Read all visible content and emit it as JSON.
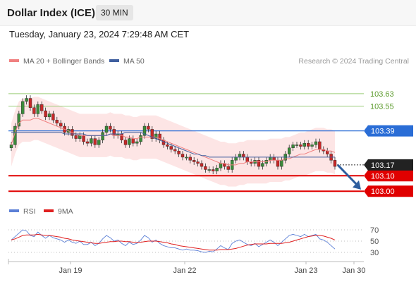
{
  "header": {
    "title": "Dollar Index (ICE)",
    "interval": "30 MIN",
    "datetime": "Tuesday, January 23, 2024 7:29:48 AM CET"
  },
  "legend": {
    "ma20": "MA 20 + Bollinger Bands",
    "ma50": "MA 50",
    "credit": "Research © 2024 Trading Central",
    "rsi": "RSI",
    "rsi_ma": "9MA"
  },
  "colors": {
    "up": "#3a8a3a",
    "down": "#c62828",
    "ma20": "#f08080",
    "ma50": "#3f5f9f",
    "band": "#fcdede",
    "resistance": "#9acd78",
    "pivot": "#2a6dd6",
    "support": "#e00000",
    "arrow": "#2e5e9e",
    "rsi_line": "#5b7fd6",
    "rsi_ma": "#e02020"
  },
  "chart_data": {
    "type": "candlestick",
    "symbol": "Dollar Index (ICE)",
    "timeframe": "30 MIN",
    "x_labels": [
      "Jan 19",
      "Jan 22",
      "Jan 23",
      "Jan 30"
    ],
    "ylim": [
      102.96,
      103.78
    ],
    "levels": [
      {
        "id": "r2",
        "value": 103.63,
        "label": "103.63",
        "kind": "resistance"
      },
      {
        "id": "r1",
        "value": 103.55,
        "label": "103.55",
        "kind": "resistance"
      },
      {
        "id": "pivot",
        "value": 103.39,
        "label": "103.39",
        "kind": "pivot"
      },
      {
        "id": "s1",
        "value": 103.1,
        "label": "103.10",
        "kind": "support"
      },
      {
        "id": "s2",
        "value": 103.0,
        "label": "103.00",
        "kind": "support"
      }
    ],
    "last_price": {
      "value": 103.17,
      "label": "103.17"
    },
    "closes": [
      103.3,
      103.42,
      103.5,
      103.58,
      103.6,
      103.54,
      103.5,
      103.56,
      103.52,
      103.48,
      103.5,
      103.46,
      103.44,
      103.42,
      103.38,
      103.4,
      103.36,
      103.34,
      103.36,
      103.32,
      103.31,
      103.34,
      103.3,
      103.33,
      103.38,
      103.42,
      103.4,
      103.36,
      103.37,
      103.33,
      103.3,
      103.34,
      103.31,
      103.32,
      103.36,
      103.42,
      103.4,
      103.34,
      103.37,
      103.33,
      103.3,
      103.29,
      103.27,
      103.26,
      103.24,
      103.22,
      103.22,
      103.2,
      103.19,
      103.18,
      103.16,
      103.14,
      103.14,
      103.13,
      103.15,
      103.18,
      103.16,
      103.14,
      103.2,
      103.22,
      103.24,
      103.22,
      103.19,
      103.18,
      103.2,
      103.16,
      103.18,
      103.2,
      103.22,
      103.2,
      103.16,
      103.2,
      103.24,
      103.28,
      103.3,
      103.3,
      103.29,
      103.31,
      103.29,
      103.3,
      103.32,
      103.27,
      103.26,
      103.24,
      103.2,
      103.16
    ],
    "ma20": [
      103.3,
      103.38,
      103.44,
      103.46,
      103.46,
      103.46,
      103.47,
      103.47,
      103.46,
      103.45,
      103.44,
      103.43,
      103.42,
      103.41,
      103.4,
      103.39,
      103.38,
      103.37,
      103.36,
      103.36,
      103.36,
      103.36,
      103.36,
      103.36,
      103.36,
      103.36,
      103.37,
      103.36,
      103.36,
      103.36,
      103.35,
      103.35,
      103.34,
      103.34,
      103.35,
      103.35,
      103.35,
      103.35,
      103.35,
      103.34,
      103.33,
      103.32,
      103.31,
      103.3,
      103.29,
      103.28,
      103.27,
      103.26,
      103.25,
      103.24,
      103.23,
      103.22,
      103.21,
      103.2,
      103.19,
      103.18,
      103.18,
      103.17,
      103.17,
      103.17,
      103.18,
      103.18,
      103.19,
      103.19,
      103.19,
      103.19,
      103.19,
      103.19,
      103.2,
      103.2,
      103.2,
      103.2,
      103.21,
      103.21,
      103.22,
      103.23,
      103.24,
      103.24,
      103.25,
      103.26,
      103.27,
      103.27,
      103.27,
      103.26,
      103.26,
      103.25
    ],
    "ma50": [
      103.38,
      103.38,
      103.38,
      103.38,
      103.38,
      103.38,
      103.38,
      103.38,
      103.38,
      103.38,
      103.38,
      103.38,
      103.38,
      103.38,
      103.37,
      103.37,
      103.37,
      103.37,
      103.37,
      103.37,
      103.36,
      103.36,
      103.36,
      103.36,
      103.36,
      103.36,
      103.37,
      103.37,
      103.37,
      103.37,
      103.38,
      103.38,
      103.38,
      103.38,
      103.38,
      103.37,
      103.36,
      103.35,
      103.34,
      103.33,
      103.32,
      103.31,
      103.3,
      103.29,
      103.28,
      103.27,
      103.26,
      103.25,
      103.24,
      103.24,
      103.23,
      103.23,
      103.22,
      103.22,
      103.22,
      103.22,
      103.22,
      103.22,
      103.22,
      103.22,
      103.22,
      103.22,
      103.22,
      103.22,
      103.22,
      103.22,
      103.22,
      103.22,
      103.22,
      103.22,
      103.22,
      103.22,
      103.22,
      103.22,
      103.22,
      103.22,
      103.22,
      103.22,
      103.22,
      103.22,
      103.22,
      103.22,
      103.22,
      103.22,
      103.22,
      103.22
    ],
    "bb_width": 0.14,
    "rsi": {
      "levels": [
        70,
        50,
        30
      ],
      "ylim": [
        20,
        80
      ],
      "values": [
        52,
        58,
        64,
        70,
        68,
        60,
        58,
        66,
        60,
        55,
        60,
        56,
        54,
        52,
        48,
        52,
        48,
        46,
        50,
        44,
        44,
        48,
        42,
        46,
        54,
        60,
        56,
        50,
        52,
        46,
        42,
        48,
        44,
        46,
        52,
        60,
        56,
        48,
        52,
        46,
        42,
        40,
        38,
        38,
        36,
        34,
        36,
        34,
        34,
        33,
        31,
        30,
        32,
        31,
        36,
        42,
        38,
        35,
        46,
        50,
        52,
        48,
        44,
        42,
        46,
        40,
        44,
        48,
        52,
        48,
        42,
        48,
        54,
        60,
        62,
        60,
        58,
        62,
        58,
        60,
        62,
        54,
        52,
        48,
        42,
        36
      ],
      "ma9": [
        52,
        54,
        57,
        60,
        61,
        61,
        61,
        62,
        61,
        60,
        60,
        59,
        58,
        57,
        55,
        54,
        52,
        51,
        50,
        49,
        48,
        47,
        46,
        46,
        47,
        48,
        49,
        49,
        50,
        50,
        49,
        49,
        48,
        48,
        48,
        49,
        50,
        50,
        50,
        49,
        48,
        47,
        45,
        44,
        42,
        41,
        40,
        39,
        38,
        37,
        36,
        35,
        34,
        34,
        34,
        35,
        35,
        35,
        36,
        37,
        39,
        41,
        43,
        44,
        45,
        45,
        45,
        45,
        46,
        46,
        46,
        46,
        47,
        48,
        50,
        52,
        54,
        56,
        58,
        59,
        60,
        60,
        59,
        57,
        55,
        52
      ]
    }
  }
}
